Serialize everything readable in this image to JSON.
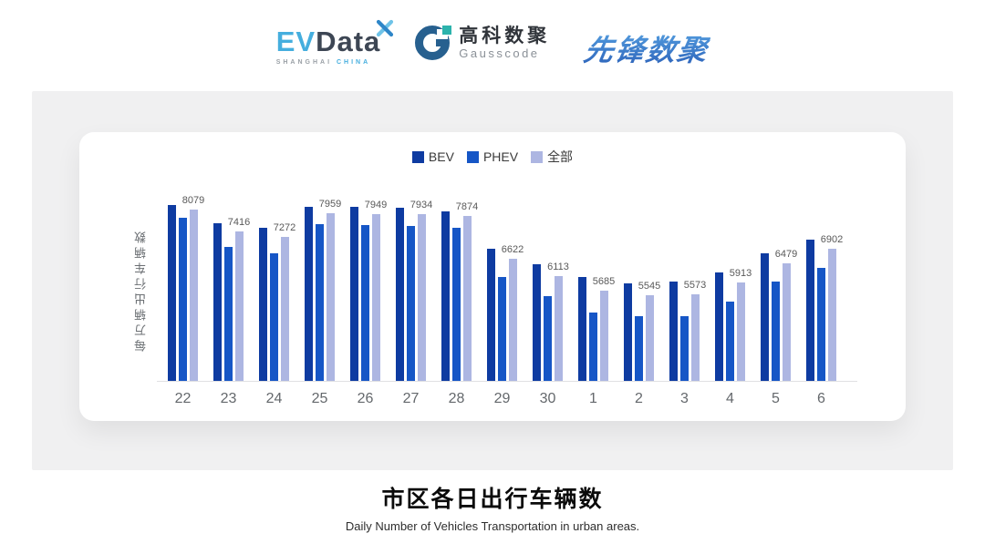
{
  "header": {
    "evdata": {
      "ev": "EV",
      "data": "Data",
      "sub_left": "SHANGHAI",
      "sub_right": "CHINA"
    },
    "gausscode": {
      "cn": "高科数聚",
      "en": "Gausscode"
    },
    "pioneer": {
      "text": "先锋数聚"
    }
  },
  "chart_data": {
    "type": "bar",
    "title": "市区各日出行车辆数",
    "subtitle": "Daily Number of Vehicles Transportation in urban areas.",
    "ylabel": "每万辆出行车辆数",
    "categories": [
      "22",
      "23",
      "24",
      "25",
      "26",
      "27",
      "28",
      "29",
      "30",
      "1",
      "2",
      "3",
      "4",
      "5",
      "6"
    ],
    "series": [
      {
        "name": "BEV",
        "color": "#0e3ba1",
        "values": [
          8210,
          7670,
          7545,
          8155,
          8150,
          8130,
          8030,
          6920,
          6445,
          6065,
          5900,
          5930,
          6225,
          6785,
          7195
        ]
      },
      {
        "name": "PHEV",
        "color": "#1656c6",
        "values": [
          7820,
          6965,
          6770,
          7640,
          7625,
          7600,
          7525,
          6090,
          5505,
          5025,
          4925,
          4910,
          5340,
          5930,
          6360
        ]
      },
      {
        "name": "全部",
        "color": "#adb6e2",
        "labels_shown": true,
        "values": [
          8079,
          7416,
          7272,
          7959,
          7949,
          7934,
          7874,
          6622,
          6113,
          5685,
          5545,
          5573,
          5913,
          6479,
          6902
        ]
      }
    ],
    "value_labels": [
      8079,
      7416,
      7272,
      7959,
      7949,
      7934,
      7874,
      6622,
      6113,
      5685,
      5545,
      5573,
      5913,
      6479,
      6902
    ],
    "y_min": 3000,
    "y_max": 8400,
    "grid": false,
    "legend_position": "top",
    "axis_line_color": "#e0e0e3"
  },
  "footer": {
    "title": "市区各日出行车辆数",
    "subtitle": "Daily Number of Vehicles Transportation in urban areas."
  }
}
